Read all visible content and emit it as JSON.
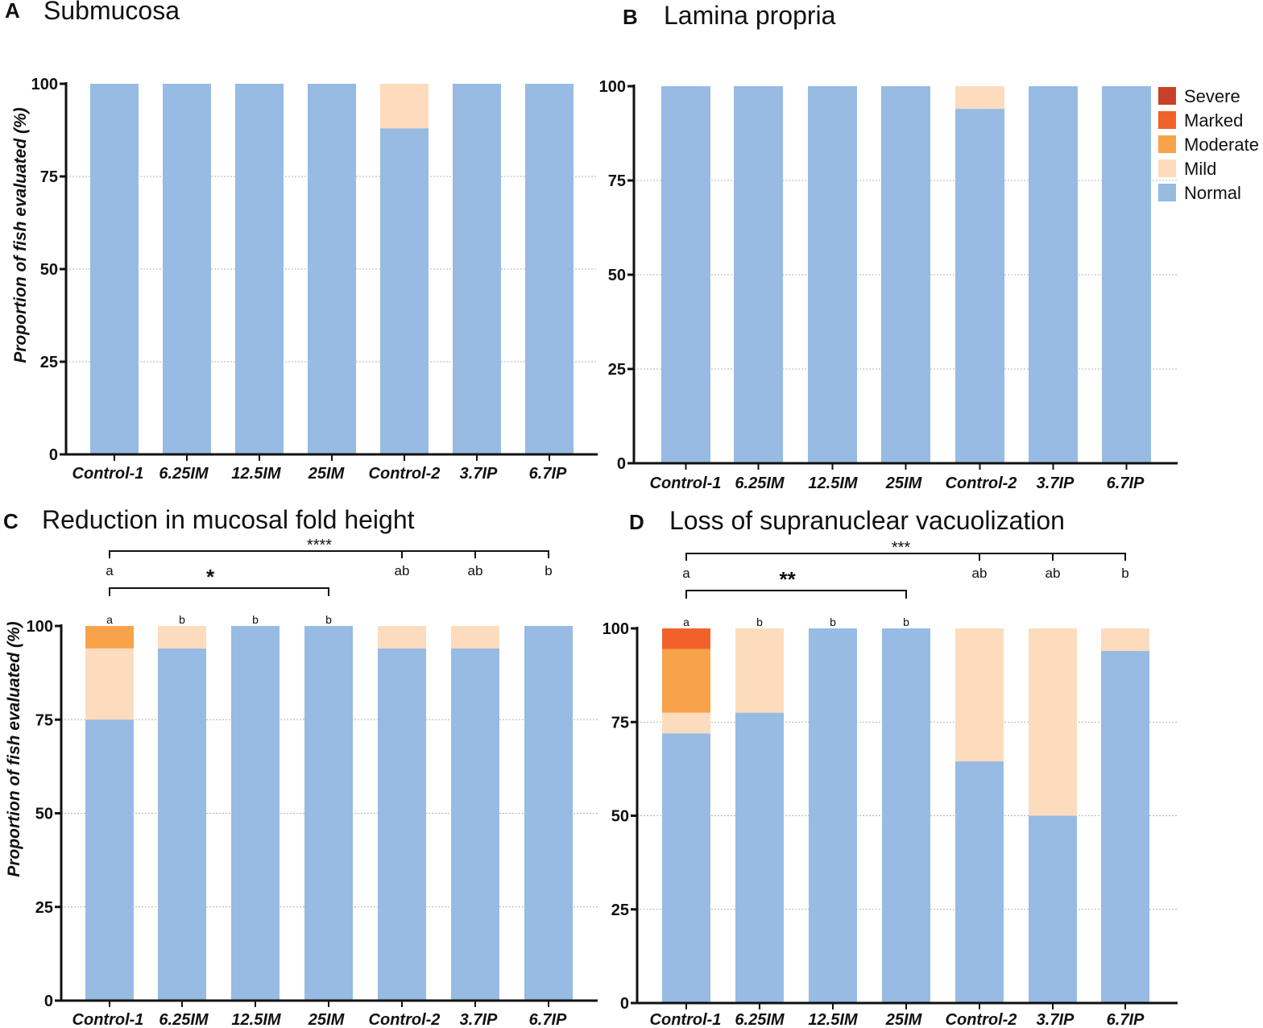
{
  "legend": [
    {
      "name": "Severe",
      "color": "#c8402a"
    },
    {
      "name": "Marked",
      "color": "#f0622a"
    },
    {
      "name": "Moderate",
      "color": "#f7a34a"
    },
    {
      "name": "Mild",
      "color": "#fcdcbd"
    },
    {
      "name": "Normal",
      "color": "#97bbe2"
    }
  ],
  "chart_data": [
    {
      "panel": "A",
      "title": "Submucosa",
      "type": "bar",
      "stacked": true,
      "ylabel": "Proportion of fish evaluated (%)",
      "ylim": [
        0,
        100
      ],
      "yticks": [
        0,
        25,
        50,
        75,
        100
      ],
      "grid": true,
      "categories": [
        "Control-1",
        "6.25IM",
        "12.5IM",
        "25IM",
        "Control-2",
        "3.7IP",
        "6.7IP"
      ],
      "series": [
        {
          "name": "Normal",
          "values": [
            100,
            100,
            100,
            100,
            88,
            100,
            100
          ]
        },
        {
          "name": "Mild",
          "values": [
            0,
            0,
            0,
            0,
            12,
            0,
            0
          ]
        },
        {
          "name": "Moderate",
          "values": [
            0,
            0,
            0,
            0,
            0,
            0,
            0
          ]
        },
        {
          "name": "Marked",
          "values": [
            0,
            0,
            0,
            0,
            0,
            0,
            0
          ]
        },
        {
          "name": "Severe",
          "values": [
            0,
            0,
            0,
            0,
            0,
            0,
            0
          ]
        }
      ]
    },
    {
      "panel": "B",
      "title": "Lamina propria",
      "type": "bar",
      "stacked": true,
      "ylabel": "",
      "ylim": [
        0,
        100
      ],
      "yticks": [
        0,
        25,
        50,
        75,
        100
      ],
      "grid": true,
      "legend_position": "top-right",
      "categories": [
        "Control-1",
        "6.25IM",
        "12.5IM",
        "25IM",
        "Control-2",
        "3.7IP",
        "6.7IP"
      ],
      "series": [
        {
          "name": "Normal",
          "values": [
            100,
            100,
            100,
            100,
            94,
            100,
            100
          ]
        },
        {
          "name": "Mild",
          "values": [
            0,
            0,
            0,
            0,
            6,
            0,
            0
          ]
        },
        {
          "name": "Moderate",
          "values": [
            0,
            0,
            0,
            0,
            0,
            0,
            0
          ]
        },
        {
          "name": "Marked",
          "values": [
            0,
            0,
            0,
            0,
            0,
            0,
            0
          ]
        },
        {
          "name": "Severe",
          "values": [
            0,
            0,
            0,
            0,
            0,
            0,
            0
          ]
        }
      ]
    },
    {
      "panel": "C",
      "title": "Reduction in mucosal fold height",
      "type": "bar",
      "stacked": true,
      "ylabel": "Proportion of fish evaluated (%)",
      "ylim": [
        0,
        100
      ],
      "yticks": [
        0,
        25,
        50,
        75,
        100
      ],
      "grid": true,
      "categories": [
        "Control-1",
        "6.25IM",
        "12.5IM",
        "25IM",
        "Control-2",
        "3.7IP",
        "6.7IP"
      ],
      "series": [
        {
          "name": "Normal",
          "values": [
            75,
            94,
            100,
            100,
            94,
            94,
            100
          ]
        },
        {
          "name": "Mild",
          "values": [
            19,
            6,
            0,
            0,
            6,
            6,
            0
          ]
        },
        {
          "name": "Moderate",
          "values": [
            6,
            0,
            0,
            0,
            0,
            0,
            0
          ]
        },
        {
          "name": "Marked",
          "values": [
            0,
            0,
            0,
            0,
            0,
            0,
            0
          ]
        },
        {
          "name": "Severe",
          "values": [
            0,
            0,
            0,
            0,
            0,
            0,
            0
          ]
        }
      ],
      "bar_letters": [
        "a",
        "b",
        "b",
        "b",
        "",
        "",
        ""
      ],
      "significance": [
        {
          "label": "****",
          "from": 0,
          "to": 6,
          "level": 2,
          "letters": {
            "0": "a",
            "4": "ab",
            "5": "ab",
            "6": "b"
          }
        },
        {
          "label": "*",
          "from": 0,
          "to": 3,
          "level": 1
        }
      ]
    },
    {
      "panel": "D",
      "title": "Loss of supranuclear vacuolization",
      "type": "bar",
      "stacked": true,
      "ylabel": "",
      "ylim": [
        0,
        100
      ],
      "yticks": [
        0,
        25,
        50,
        75,
        100
      ],
      "grid": true,
      "categories": [
        "Control-1",
        "6.25IM",
        "12.5IM",
        "25IM",
        "Control-2",
        "3.7IP",
        "6.7IP"
      ],
      "series": [
        {
          "name": "Normal",
          "values": [
            72,
            77.5,
            100,
            100,
            64.5,
            50,
            94
          ]
        },
        {
          "name": "Mild",
          "values": [
            5.5,
            22.5,
            0,
            0,
            35.5,
            50,
            6
          ]
        },
        {
          "name": "Moderate",
          "values": [
            17,
            0,
            0,
            0,
            0,
            0,
            0
          ]
        },
        {
          "name": "Marked",
          "values": [
            5.5,
            0,
            0,
            0,
            0,
            0,
            0
          ]
        },
        {
          "name": "Severe",
          "values": [
            0,
            0,
            0,
            0,
            0,
            0,
            0
          ]
        }
      ],
      "bar_letters": [
        "a",
        "b",
        "b",
        "b",
        "",
        "",
        ""
      ],
      "significance": [
        {
          "label": "***",
          "from": 0,
          "to": 6,
          "level": 2,
          "letters": {
            "0": "a",
            "4": "ab",
            "5": "ab",
            "6": "b"
          }
        },
        {
          "label": "**",
          "from": 0,
          "to": 3,
          "level": 1
        }
      ]
    }
  ]
}
